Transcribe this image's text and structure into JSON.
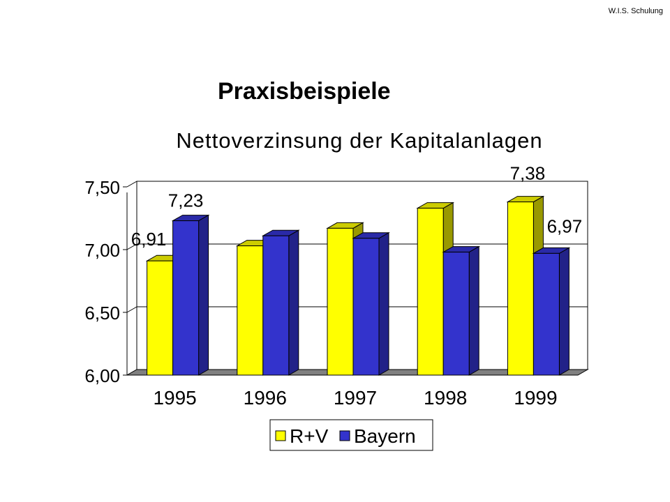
{
  "header": {
    "note": "W.I.S. Schulung"
  },
  "page": {
    "title": "Praxisbeispiele"
  },
  "colors": {
    "rv_face": "#ffff00",
    "rv_side": "#999900",
    "rv_top": "#cccc00",
    "bayern_face": "#3333cc",
    "bayern_side": "#222288",
    "bayern_top": "#2a2aa8",
    "floor": "#808080",
    "grid": "#000000"
  },
  "chart_data": {
    "type": "bar",
    "title": "Nettoverzinsung der Kapitalanlagen",
    "categories": [
      "1995",
      "1996",
      "1997",
      "1998",
      "1999"
    ],
    "series": [
      {
        "name": "R+V",
        "values": [
          6.91,
          7.03,
          7.17,
          7.33,
          7.38
        ]
      },
      {
        "name": "Bayern",
        "values": [
          7.23,
          7.11,
          7.09,
          6.98,
          6.97
        ]
      }
    ],
    "ylim": [
      6.0,
      7.5
    ],
    "yticks": [
      "6,00",
      "6,50",
      "7,00",
      "7,50"
    ],
    "grid": true,
    "legend": "bottom",
    "data_labels": [
      "6,91",
      "7,23",
      "7,38",
      "6,97"
    ]
  }
}
